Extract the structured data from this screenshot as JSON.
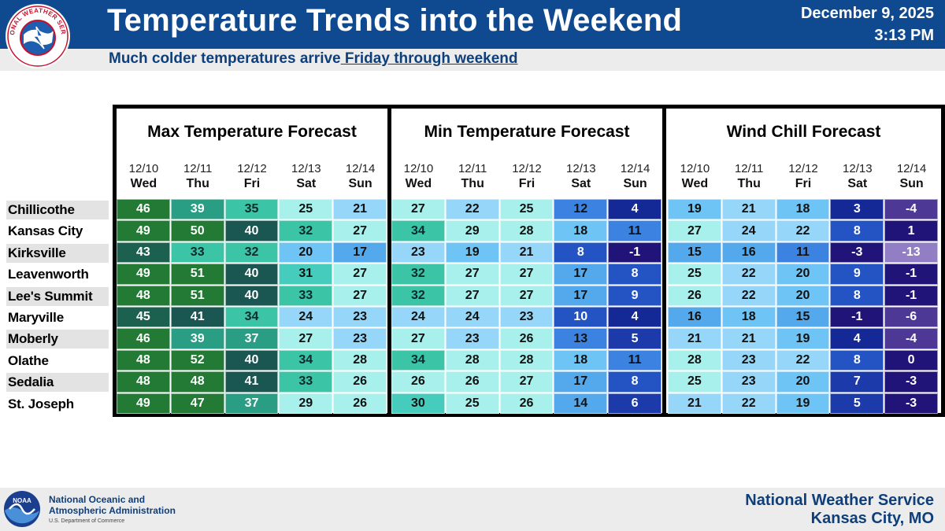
{
  "header": {
    "title": "Temperature Trends into the Weekend",
    "date": "December 9, 2025",
    "time": "3:13 PM",
    "subtitle_plain": "Much colder temperatures arrive",
    "subtitle_underlined": " Friday through weekend"
  },
  "logos": {
    "nws_logo_text": "NATIONAL WEATHER SERVICE",
    "noaa_logo_text": "NOAA"
  },
  "cities": [
    "Chillicothe",
    "Kansas City",
    "Kirksville",
    "Leavenworth",
    "Lee's Summit",
    "Maryville",
    "Moberly",
    "Olathe",
    "Sedalia",
    "St. Joseph"
  ],
  "panels": [
    {
      "title": "Max Temperature Forecast",
      "columns": [
        {
          "date": "12/10",
          "day": "Wed"
        },
        {
          "date": "12/11",
          "day": "Thu"
        },
        {
          "date": "12/12",
          "day": "Fri"
        },
        {
          "date": "12/13",
          "day": "Sat"
        },
        {
          "date": "12/14",
          "day": "Sun"
        }
      ],
      "values": [
        [
          "46",
          "39",
          "35",
          "25",
          "21"
        ],
        [
          "49",
          "50",
          "40",
          "32",
          "27"
        ],
        [
          "43",
          "33",
          "32",
          "20",
          "17"
        ],
        [
          "49",
          "51",
          "40",
          "31",
          "27"
        ],
        [
          "48",
          "51",
          "40",
          "33",
          "27"
        ],
        [
          "45",
          "41",
          "34",
          "24",
          "23"
        ],
        [
          "46",
          "39",
          "37",
          "27",
          "23"
        ],
        [
          "48",
          "52",
          "40",
          "34",
          "28"
        ],
        [
          "48",
          "48",
          "41",
          "33",
          "26"
        ],
        [
          "49",
          "47",
          "37",
          "29",
          "26"
        ]
      ]
    },
    {
      "title": "Min Temperature Forecast",
      "columns": [
        {
          "date": "12/10",
          "day": "Wed"
        },
        {
          "date": "12/11",
          "day": "Thu"
        },
        {
          "date": "12/12",
          "day": "Fri"
        },
        {
          "date": "12/13",
          "day": "Sat"
        },
        {
          "date": "12/14",
          "day": "Sun"
        }
      ],
      "values": [
        [
          "27",
          "22",
          "25",
          "12",
          "4"
        ],
        [
          "34",
          "29",
          "28",
          "18",
          "11"
        ],
        [
          "23",
          "19",
          "21",
          "8",
          "-1"
        ],
        [
          "32",
          "27",
          "27",
          "17",
          "8"
        ],
        [
          "32",
          "27",
          "27",
          "17",
          "9"
        ],
        [
          "24",
          "24",
          "23",
          "10",
          "4"
        ],
        [
          "27",
          "23",
          "26",
          "13",
          "5"
        ],
        [
          "34",
          "28",
          "28",
          "18",
          "11"
        ],
        [
          "26",
          "26",
          "27",
          "17",
          "8"
        ],
        [
          "30",
          "25",
          "26",
          "14",
          "6"
        ]
      ]
    },
    {
      "title": "Wind Chill Forecast",
      "columns": [
        {
          "date": "12/10",
          "day": "Wed"
        },
        {
          "date": "12/11",
          "day": "Thu"
        },
        {
          "date": "12/12",
          "day": "Fri"
        },
        {
          "date": "12/13",
          "day": "Sat"
        },
        {
          "date": "12/14",
          "day": "Sun"
        }
      ],
      "values": [
        [
          "19",
          "21",
          "18",
          "3",
          "-4"
        ],
        [
          "27",
          "24",
          "22",
          "8",
          "1"
        ],
        [
          "15",
          "16",
          "11",
          "-3",
          "-13"
        ],
        [
          "25",
          "22",
          "20",
          "9",
          "-1"
        ],
        [
          "26",
          "22",
          "20",
          "8",
          "-1"
        ],
        [
          "16",
          "18",
          "15",
          "-1",
          "-6"
        ],
        [
          "21",
          "21",
          "19",
          "4",
          "-4"
        ],
        [
          "28",
          "23",
          "22",
          "8",
          "0"
        ],
        [
          "25",
          "23",
          "20",
          "7",
          "-3"
        ],
        [
          "21",
          "22",
          "19",
          "5",
          "-3"
        ]
      ]
    }
  ],
  "footer": {
    "noaa_line1": "National Oceanic and",
    "noaa_line2": "Atmospheric Administration",
    "noaa_line3": "U.S. Department of Commerce",
    "nws_line1": "National Weather Service",
    "nws_line2": "Kansas City, MO"
  },
  "colors": {
    "header_blue": "#0f4a91",
    "subtitle_blue": "#0f3f7a"
  }
}
